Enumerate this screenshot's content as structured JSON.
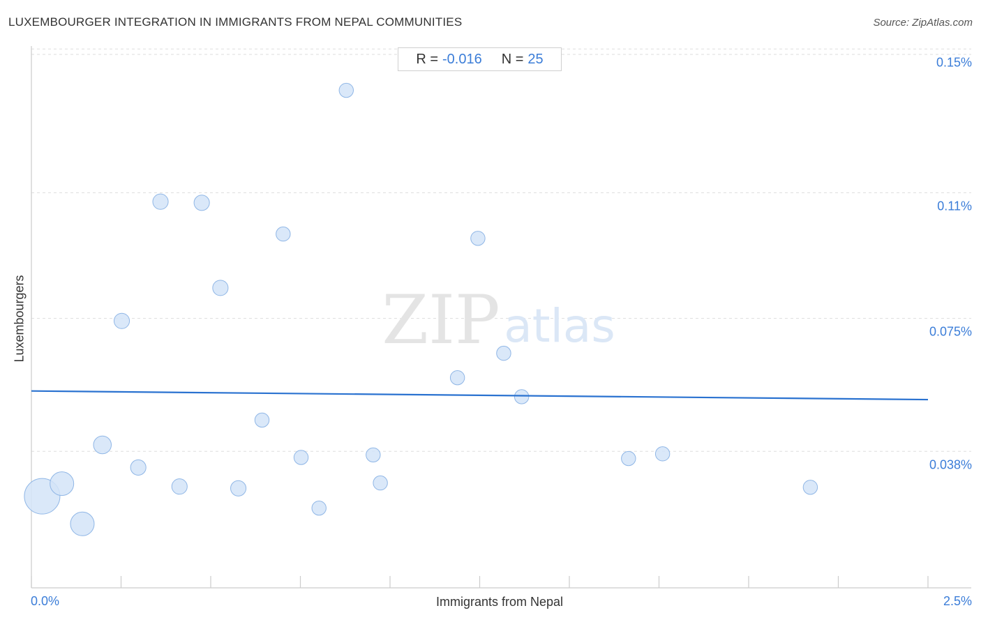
{
  "header": {
    "title": "LUXEMBOURGER INTEGRATION IN IMMIGRANTS FROM NEPAL COMMUNITIES",
    "source": "Source: ZipAtlas.com"
  },
  "stats": {
    "r_label": "R =",
    "r_value": "-0.016",
    "n_label": "N =",
    "n_value": "25"
  },
  "watermark": {
    "zip": "ZIP",
    "atlas": "atlas"
  },
  "colors": {
    "accent": "#3b7dd8",
    "point_fill": "#d3e4f8",
    "point_stroke": "#8fb6e6",
    "trend": "#2a72d0",
    "grid": "#dddddd"
  },
  "chart_data": {
    "type": "scatter",
    "title": "LUXEMBOURGER INTEGRATION IN IMMIGRANTS FROM NEPAL COMMUNITIES",
    "xlabel": "Immigrants from Nepal",
    "ylabel": "Luxembourgers",
    "xlim": [
      0,
      2.5
    ],
    "ylim": [
      0.0,
      0.152
    ],
    "x_tick_labels": [
      "0.0%",
      "2.5%"
    ],
    "y_ticks": [
      0.038,
      0.075,
      0.11,
      0.15
    ],
    "y_tick_labels": [
      "0.038%",
      "0.075%",
      "0.11%",
      "0.15%"
    ],
    "grid": true,
    "trendline": {
      "x": [
        0.0,
        2.5
      ],
      "y": [
        0.0548,
        0.0524
      ]
    },
    "points": [
      {
        "x": 0.03,
        "y": 0.0255,
        "size": 3
      },
      {
        "x": 0.085,
        "y": 0.029,
        "size": 2
      },
      {
        "x": 0.142,
        "y": 0.0178,
        "size": 2
      },
      {
        "x": 0.198,
        "y": 0.0398,
        "size": 1.5
      },
      {
        "x": 0.252,
        "y": 0.0743,
        "size": 1.3
      },
      {
        "x": 0.298,
        "y": 0.0335,
        "size": 1.3
      },
      {
        "x": 0.36,
        "y": 0.1075,
        "size": 1.3
      },
      {
        "x": 0.413,
        "y": 0.0282,
        "size": 1.3
      },
      {
        "x": 0.475,
        "y": 0.1072,
        "size": 1.3
      },
      {
        "x": 0.527,
        "y": 0.0835,
        "size": 1.3
      },
      {
        "x": 0.577,
        "y": 0.0277,
        "size": 1.3
      },
      {
        "x": 0.643,
        "y": 0.0467,
        "size": 1.2
      },
      {
        "x": 0.702,
        "y": 0.0985,
        "size": 1.2
      },
      {
        "x": 0.752,
        "y": 0.0363,
        "size": 1.2
      },
      {
        "x": 0.802,
        "y": 0.0222,
        "size": 1.2
      },
      {
        "x": 0.878,
        "y": 0.1385,
        "size": 1.2
      },
      {
        "x": 0.953,
        "y": 0.037,
        "size": 1.2
      },
      {
        "x": 0.973,
        "y": 0.0292,
        "size": 1.2
      },
      {
        "x": 1.188,
        "y": 0.0585,
        "size": 1.2
      },
      {
        "x": 1.245,
        "y": 0.0973,
        "size": 1.2
      },
      {
        "x": 1.317,
        "y": 0.0653,
        "size": 1.2
      },
      {
        "x": 1.367,
        "y": 0.0532,
        "size": 1.2
      },
      {
        "x": 1.665,
        "y": 0.036,
        "size": 1.2
      },
      {
        "x": 1.76,
        "y": 0.0373,
        "size": 1.2
      },
      {
        "x": 2.172,
        "y": 0.028,
        "size": 1.2
      }
    ]
  }
}
